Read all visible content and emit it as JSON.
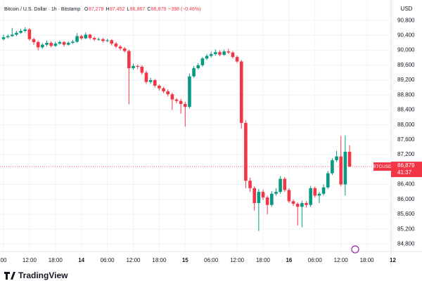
{
  "chart_data": {
    "type": "candlestick",
    "title": "Bitcoin / U.S. Dollar · 1h · Bitstamp",
    "ohlc_legend": [
      {
        "key": "O",
        "text": "87,278"
      },
      {
        "key": "H",
        "text": "87,452"
      },
      {
        "key": "L",
        "text": "86,867"
      },
      {
        "key": "C",
        "text": "86,879"
      }
    ],
    "change": "−398 (−0.46%)",
    "currency": "USD",
    "symbol": "BTCUSD",
    "last_price": "86,879",
    "countdown": "41:37",
    "brand": "TradingView",
    "up_color": "#089981",
    "down_color": "#f23645",
    "grid": true,
    "categories": [
      "00",
      null,
      null,
      null,
      null,
      null,
      "12:00",
      null,
      null,
      null,
      null,
      null,
      "18:00",
      null,
      null,
      null,
      null,
      null,
      "14",
      null,
      null,
      null,
      null,
      null,
      "06:00",
      null,
      null,
      null,
      null,
      null,
      "12:00",
      null,
      null,
      null,
      null,
      null,
      "18:00",
      null,
      null,
      null,
      null,
      null,
      "15",
      null,
      null,
      null,
      null,
      null,
      "06:00",
      null,
      null,
      null,
      null,
      null,
      "12:00",
      null,
      null,
      null,
      null,
      null,
      "18:00",
      null,
      null,
      null,
      null,
      null,
      "16",
      null,
      null,
      null,
      null,
      null,
      "06:00",
      null,
      null,
      null,
      null,
      null,
      "12:00",
      null,
      null,
      null,
      null,
      null,
      "18:00",
      null,
      null,
      null,
      null,
      null,
      "12"
    ],
    "open": [
      90300,
      90350,
      90380,
      90420,
      90470,
      90520,
      90560,
      90300,
      90220,
      90080,
      90150,
      90200,
      90120,
      90180,
      90220,
      90150,
      90200,
      90230,
      90380,
      90320,
      90420,
      90330,
      90290,
      90300,
      90250,
      90270,
      90180,
      90100,
      90050,
      89980,
      89520,
      89580,
      89560,
      89400,
      89150,
      89200,
      89050,
      88980,
      88900,
      88820,
      88680,
      88640,
      88560,
      88480,
      89300,
      89520,
      89600,
      89780,
      89850,
      89900,
      89950,
      89880,
      89970,
      89940,
      89820,
      89700,
      88050,
      86500,
      86300,
      85900,
      86200,
      86050,
      85850,
      86150,
      86200,
      86550,
      86250,
      85950,
      85880,
      85800,
      85900,
      85850,
      86300,
      86100,
      86150,
      86320,
      86700,
      87050,
      87150,
      86400,
      87278,
      null,
      null,
      null,
      null,
      null,
      null,
      null,
      null,
      null,
      null
    ],
    "high": [
      90420,
      90430,
      90600,
      90520,
      90580,
      90620,
      90600,
      90340,
      90260,
      90190,
      90260,
      90240,
      90230,
      90260,
      90250,
      90240,
      90280,
      90460,
      90420,
      90480,
      90450,
      90360,
      90340,
      90330,
      90310,
      90300,
      90220,
      90140,
      90090,
      90020,
      89640,
      89620,
      89600,
      89450,
      89260,
      89230,
      89080,
      89020,
      88950,
      88860,
      88720,
      88700,
      88620,
      89380,
      89580,
      89660,
      89820,
      89900,
      89960,
      90020,
      90000,
      90020,
      90040,
      89980,
      89860,
      89740,
      88120,
      86580,
      86350,
      86280,
      86260,
      86100,
      86220,
      86300,
      86620,
      86600,
      86300,
      86000,
      85920,
      85960,
      85950,
      86360,
      86340,
      86200,
      86400,
      86760,
      87100,
      87300,
      87700,
      87720,
      87452,
      null,
      null,
      null,
      null,
      null,
      null,
      null,
      null,
      null,
      null
    ],
    "low": [
      90260,
      90320,
      90360,
      90380,
      90440,
      90480,
      90260,
      90150,
      90000,
      90040,
      90110,
      90080,
      90090,
      90150,
      90100,
      90120,
      90170,
      90200,
      90280,
      90300,
      90290,
      90250,
      90260,
      90210,
      90220,
      90130,
      90060,
      90000,
      89940,
      88550,
      89480,
      89500,
      89350,
      89100,
      89100,
      89000,
      88920,
      88850,
      88760,
      88400,
      88580,
      88300,
      87950,
      88440,
      89260,
      89480,
      89560,
      89740,
      89800,
      89860,
      89840,
      89850,
      89900,
      89780,
      89660,
      87900,
      86300,
      86200,
      85700,
      85150,
      85980,
      85600,
      85800,
      86100,
      86150,
      86200,
      85900,
      85820,
      85300,
      85250,
      85780,
      85800,
      86050,
      85900,
      86100,
      86280,
      86650,
      87000,
      86350,
      86100,
      86867,
      null,
      null,
      null,
      null,
      null,
      null,
      null,
      null,
      null,
      null
    ],
    "close": [
      90350,
      90380,
      90420,
      90470,
      90520,
      90560,
      90300,
      90220,
      90080,
      90150,
      90200,
      90120,
      90180,
      90220,
      90150,
      90200,
      90230,
      90380,
      90320,
      90420,
      90330,
      90290,
      90300,
      90250,
      90270,
      90180,
      90100,
      90050,
      89980,
      89520,
      89580,
      89560,
      89400,
      89150,
      89200,
      89050,
      88980,
      88900,
      88820,
      88680,
      88640,
      88560,
      88480,
      89300,
      89520,
      89600,
      89780,
      89850,
      89900,
      89950,
      89880,
      89970,
      89940,
      89820,
      89700,
      88050,
      86500,
      86300,
      85900,
      86200,
      86050,
      85850,
      86150,
      86200,
      86550,
      86250,
      85950,
      85880,
      85800,
      85900,
      85850,
      86300,
      86100,
      86150,
      86320,
      86700,
      87050,
      87150,
      86400,
      87278,
      86879,
      null,
      null,
      null,
      null,
      null,
      null,
      null,
      null,
      null,
      null
    ],
    "ylim": [
      84600,
      91350
    ],
    "yticks": [
      {
        "value": 84800,
        "label": "84,800"
      },
      {
        "value": 85200,
        "label": "85,200"
      },
      {
        "value": 85600,
        "label": "85,600"
      },
      {
        "value": 86000,
        "label": "86,000"
      },
      {
        "value": 86400,
        "label": "86,400"
      },
      {
        "value": 87200,
        "label": "87,200"
      },
      {
        "value": 87600,
        "label": "87,600"
      },
      {
        "value": 88000,
        "label": "88,000"
      },
      {
        "value": 88400,
        "label": "88,400"
      },
      {
        "value": 88800,
        "label": "88,800"
      },
      {
        "value": 89200,
        "label": "89,200"
      },
      {
        "value": 89600,
        "label": "89,600"
      },
      {
        "value": 90000,
        "label": "90,000"
      },
      {
        "value": 90400,
        "label": "90,400"
      },
      {
        "value": 90800,
        "label": "90,800"
      }
    ]
  }
}
